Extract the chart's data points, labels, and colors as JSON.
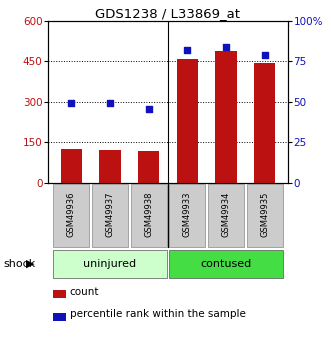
{
  "title": "GDS1238 / L33869_at",
  "categories": [
    "GSM49936",
    "GSM49937",
    "GSM49938",
    "GSM49933",
    "GSM49934",
    "GSM49935"
  ],
  "bar_values": [
    125,
    122,
    118,
    458,
    488,
    443
  ],
  "percentile_values": [
    49,
    49.5,
    45.5,
    82,
    83.5,
    79
  ],
  "bar_color": "#BB1111",
  "marker_color": "#1111BB",
  "ylim_left": [
    0,
    600
  ],
  "ylim_right": [
    0,
    100
  ],
  "yticks_left": [
    0,
    150,
    300,
    450,
    600
  ],
  "yticks_right": [
    0,
    25,
    50,
    75,
    100
  ],
  "ytick_labels_right": [
    "0",
    "25",
    "50",
    "75",
    "100%"
  ],
  "groups": [
    {
      "label": "uninjured",
      "indices": [
        0,
        1,
        2
      ],
      "color": "#ccffcc"
    },
    {
      "label": "contused",
      "indices": [
        3,
        4,
        5
      ],
      "color": "#44dd44"
    }
  ],
  "shock_label": "shock",
  "legend_count_label": "count",
  "legend_percentile_label": "percentile rank within the sample",
  "x_tick_bg_color": "#cccccc"
}
